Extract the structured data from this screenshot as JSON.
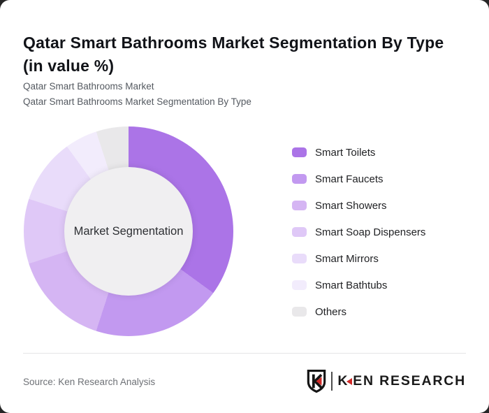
{
  "window": {
    "background": "#262626",
    "card_background": "#ffffff"
  },
  "header": {
    "title": "Qatar Smart Bathrooms Market Segmentation By Type (in value %)",
    "subtitle_line1": "Qatar Smart Bathrooms Market",
    "subtitle_line2": "Qatar Smart Bathrooms Market Segmentation By Type"
  },
  "chart_data": {
    "type": "pie",
    "subtype": "donut",
    "title": "Qatar Smart Bathrooms Market Segmentation By Type (in value %)",
    "center_label": "Market Segmentation",
    "categories": [
      "Smart Toilets",
      "Smart Faucets",
      "Smart Showers",
      "Smart Soap Dispensers",
      "Smart Mirrors",
      "Smart Bathtubs",
      "Others"
    ],
    "values": [
      35,
      20,
      15,
      10,
      10,
      5,
      5
    ],
    "colors": [
      "#ab74e7",
      "#c299f0",
      "#d5b5f3",
      "#dfc8f7",
      "#e9dcfa",
      "#f2ecfc",
      "#e9e8ea"
    ],
    "hole_color": "#f0eff1",
    "start_angle_deg": 0,
    "legend_position": "right",
    "data_labels_shown": false
  },
  "footer": {
    "source": "Source: Ken Research Analysis",
    "brand": {
      "k": "K",
      "rest": "EN RESEARCH",
      "accent": "#d02a28"
    }
  }
}
